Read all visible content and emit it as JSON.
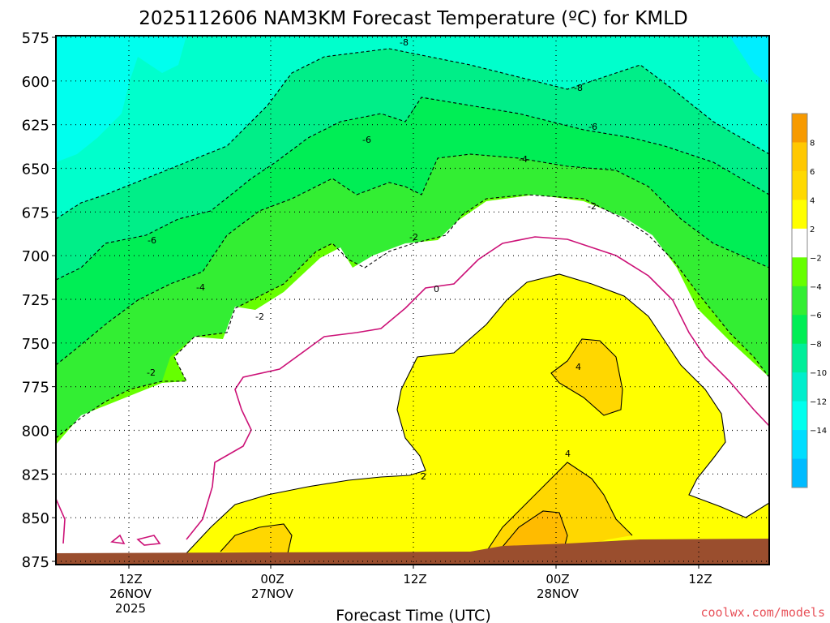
{
  "chart_data": {
    "type": "heatmap",
    "title": "2025112606 NAM3KM Forecast Temperature (ºC) for KMLD",
    "xlabel": "Forecast Time (UTC)",
    "ylabel": "",
    "credit": "coolwx.com/models",
    "y_scale": "pressure (inverted)",
    "ylim": [
      575,
      875
    ],
    "yticks": [
      "575",
      "600",
      "625",
      "650",
      "675",
      "700",
      "725",
      "750",
      "775",
      "800",
      "825",
      "850",
      "875"
    ],
    "xticks": [
      {
        "line1": "12Z",
        "line2": "26NOV",
        "line3": "2025"
      },
      {
        "line1": "00Z",
        "line2": "27NOV",
        "line3": ""
      },
      {
        "line1": "12Z",
        "line2": "",
        "line3": ""
      },
      {
        "line1": "00Z",
        "line2": "28NOV",
        "line3": ""
      },
      {
        "line1": "12Z",
        "line2": "",
        "line3": ""
      }
    ],
    "grid": true,
    "colorbar": {
      "labels": [
        "8",
        "6",
        "4",
        "2",
        "−2",
        "−4",
        "−6",
        "−8",
        "−10",
        "−12",
        "−14"
      ],
      "colors": [
        "#f79a00",
        "#ffc800",
        "#ffd900",
        "#ffff00",
        "#ffffff",
        "#66ff00",
        "#33ee33",
        "#00ee55",
        "#00ee99",
        "#00eecc",
        "#00ffee",
        "#00ddff",
        "#00bbff"
      ]
    },
    "contour_labels": [
      "-8",
      "-8",
      "-6",
      "-6",
      "-6",
      "-4",
      "-4",
      "-4",
      "-2",
      "-2",
      "-2",
      "-2",
      "0",
      "2",
      "4",
      "4"
    ],
    "terrain_color": "#9a4e2e"
  }
}
